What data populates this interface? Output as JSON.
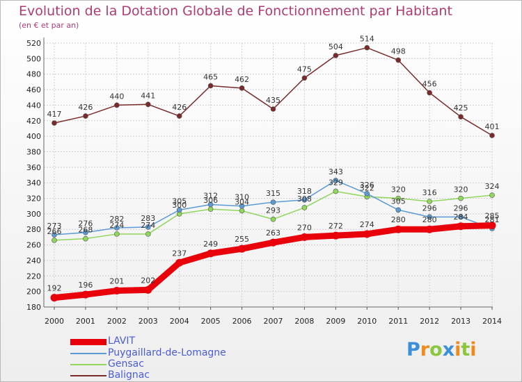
{
  "title": "Evolution de la Dotation Globale de Fonctionnement par Habitant",
  "subtitle": "(en € et par an)",
  "brand": {
    "letters": [
      "P",
      "r",
      "o",
      "x",
      "i",
      "t",
      "i"
    ],
    "colors": [
      "#3a8fd8",
      "#f08a1c",
      "#8cc63f",
      "#3a8fd8",
      "#f08a1c",
      "#8cc63f",
      "#f08a1c"
    ]
  },
  "chart_data": {
    "type": "line",
    "categories": [
      "2000",
      "2001",
      "2002",
      "2003",
      "2004",
      "2005",
      "2006",
      "2007",
      "2008",
      "2009",
      "2010",
      "2011",
      "2012",
      "2013",
      "2014"
    ],
    "ylim": [
      180,
      520
    ],
    "yticks": [
      180,
      200,
      220,
      240,
      260,
      280,
      300,
      320,
      340,
      360,
      380,
      400,
      420,
      440,
      460,
      480,
      500,
      520
    ],
    "grid": true,
    "legend_position": "bottom-left",
    "series": [
      {
        "name": "LAVIT",
        "color": "#e8000b",
        "values": [
          192,
          196,
          201,
          202,
          237,
          249,
          255,
          263,
          270,
          272,
          274,
          280,
          280,
          284,
          285
        ]
      },
      {
        "name": "Puygaillard-de-Lomagne",
        "color": "#5b9bd5",
        "values": [
          273,
          276,
          282,
          283,
          305,
          312,
          310,
          315,
          318,
          343,
          326,
          305,
          296,
          296,
          281
        ]
      },
      {
        "name": "Gensac",
        "color": "#8fd65b",
        "values": [
          266,
          268,
          274,
          274,
          300,
          306,
          304,
          293,
          308,
          329,
          322,
          320,
          316,
          320,
          324
        ]
      },
      {
        "name": "Balignac",
        "color": "#7a2a2a",
        "values": [
          417,
          426,
          440,
          441,
          426,
          465,
          462,
          435,
          475,
          504,
          514,
          498,
          456,
          425,
          401
        ]
      }
    ]
  }
}
